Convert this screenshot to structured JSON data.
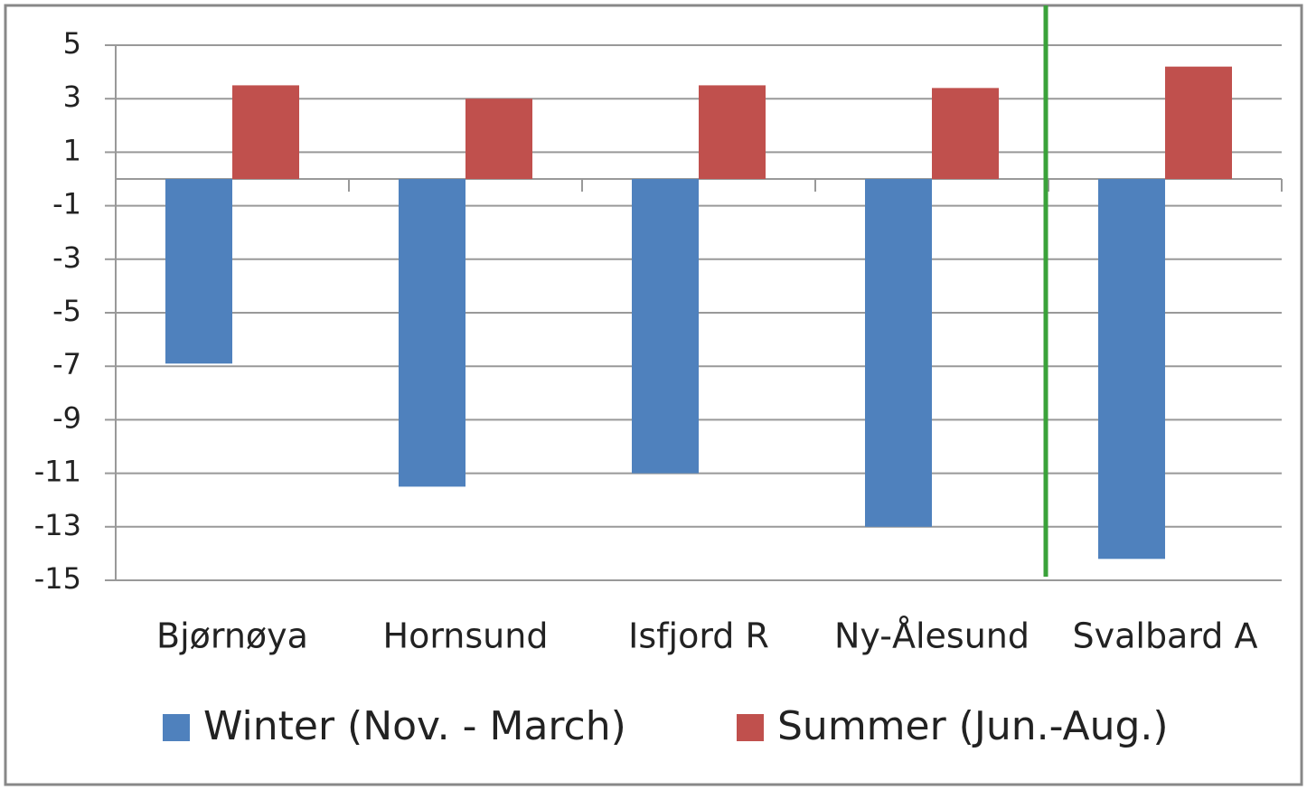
{
  "chart_data": {
    "type": "bar",
    "categories": [
      "Bjørnøya",
      "Hornsund",
      "Isfjord R",
      "Ny-Ålesund",
      "Svalbard A"
    ],
    "series": [
      {
        "name": "Winter (Nov. - March)",
        "color": "#4f81bd",
        "values": [
          -6.9,
          -11.5,
          -11.0,
          -13.0,
          -14.2
        ]
      },
      {
        "name": "Summer (Jun.-Aug.)",
        "color": "#c0504d",
        "values": [
          3.5,
          3.0,
          3.5,
          3.4,
          4.2
        ]
      }
    ],
    "ylim": [
      -15,
      5
    ],
    "yticks": [
      5,
      3,
      1,
      -1,
      -3,
      -5,
      -7,
      -9,
      -11,
      -13,
      -15
    ],
    "grid": true
  }
}
